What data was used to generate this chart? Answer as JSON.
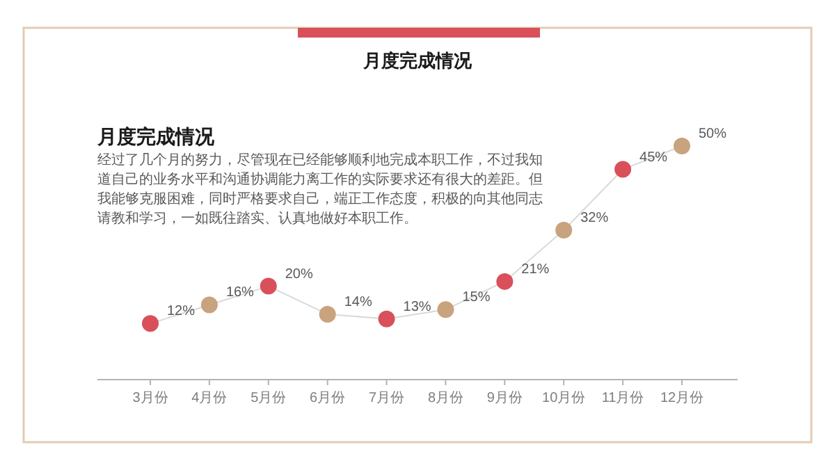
{
  "chart_data": {
    "type": "line",
    "title": "月度完成情况",
    "subtitle": "月度完成情况",
    "annotations": [
      "经过了几个月的努力，尽管现在已经能够顺利地完成本职工作，不过我知道自己的业务水平和沟通协调能力离工作的实际要求还有很大的差距。但我能够克服困难，同时严格要求自己，端正工作态度，积极的向其他同志请教和学习，一如既往踏实、认真地做好本职工作。"
    ],
    "categories": [
      "3月份",
      "4月份",
      "5月份",
      "6月份",
      "7月份",
      "8月份",
      "9月份",
      "10月份",
      "11月份",
      "12月份"
    ],
    "series": [
      {
        "color": "#d9d9d9",
        "values": [
          12,
          16,
          20,
          14,
          13,
          15,
          21,
          32,
          45,
          50
        ],
        "colors": [
          "#d9505a",
          "#c9a27e",
          "#d9505a",
          "#c9a27e",
          "#d9505a",
          "#c9a27e",
          "#d9505a",
          "#c9a27e",
          "#d9505a",
          "#c9a27e"
        ],
        "value_labels": [
          "12%",
          "16%",
          "20%",
          "14%",
          "13%",
          "15%",
          "21%",
          "32%",
          "45%",
          "50%"
        ]
      }
    ],
    "marker": "circle",
    "line_style": "solid"
  }
}
